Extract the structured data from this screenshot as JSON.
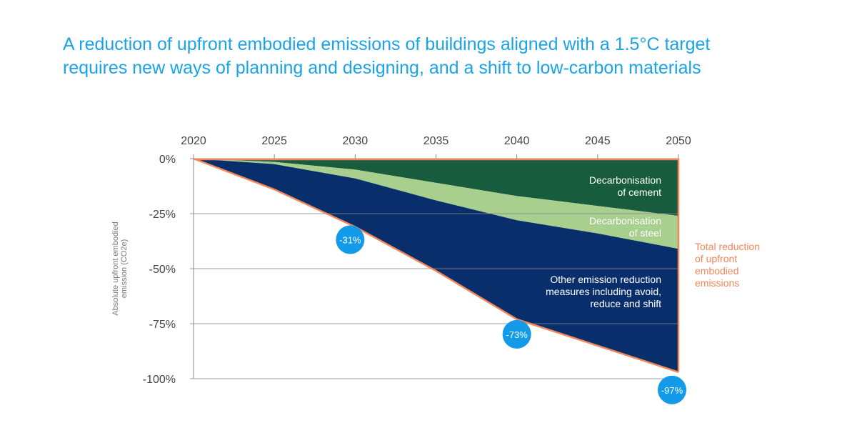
{
  "title": {
    "line1": "A reduction of upfront embodied emissions of buildings aligned with a 1.5°C target",
    "line2": "requires new ways of planning and designing, and a shift to low-carbon materials"
  },
  "colors": {
    "title": "#1aa3e8",
    "cement": "#175c3c",
    "steel": "#a8cf8e",
    "other": "#082f6b",
    "total_line": "#f2875a",
    "bubble": "#139ae8",
    "grid": "#888888"
  },
  "chart_data": {
    "type": "area",
    "x": [
      2020,
      2025,
      2030,
      2035,
      2040,
      2045,
      2050
    ],
    "x_ticks": [
      "2020",
      "2025",
      "2030",
      "2035",
      "2040",
      "2045",
      "2050"
    ],
    "y_ticks": [
      "0%",
      "-25%",
      "-50%",
      "-75%",
      "-100%"
    ],
    "y_tick_values": [
      0,
      -25,
      -50,
      -75,
      -100
    ],
    "ylabel": "Absolute upfront embodied emission (CO2e)",
    "xlabel": "",
    "ylim": [
      -100,
      0
    ],
    "xlim": [
      2020,
      2050
    ],
    "x_axis_position": "top",
    "series": [
      {
        "label": "Decarbonisation of cement",
        "label_lines": [
          "Decarbonisation",
          "of cement"
        ],
        "values": [
          0,
          -1.5,
          -5,
          -11,
          -17,
          -21.5,
          -26
        ]
      },
      {
        "label": "Decarbonisation of steel",
        "label_lines": [
          "Decarbonisation",
          "of steel"
        ],
        "values": [
          0,
          -2.5,
          -9,
          -19,
          -28,
          -34,
          -41
        ]
      },
      {
        "label": "Other emission reduction measures including avoid, reduce and shift",
        "label_lines": [
          "Other emission reduction",
          "measures including avoid,",
          "reduce and shift"
        ],
        "values": [
          0,
          -14,
          -31,
          -51,
          -73,
          -85,
          -97
        ]
      }
    ],
    "total_line_label_lines": [
      "Total reduction",
      "of upfront",
      "embodied",
      "emissions"
    ],
    "annotations": [
      {
        "x": 2030,
        "y": -31,
        "text": "-31%"
      },
      {
        "x": 2040,
        "y": -73,
        "text": "-73%"
      },
      {
        "x": 2050,
        "y": -97,
        "text": "-97%"
      }
    ],
    "grid": true
  }
}
